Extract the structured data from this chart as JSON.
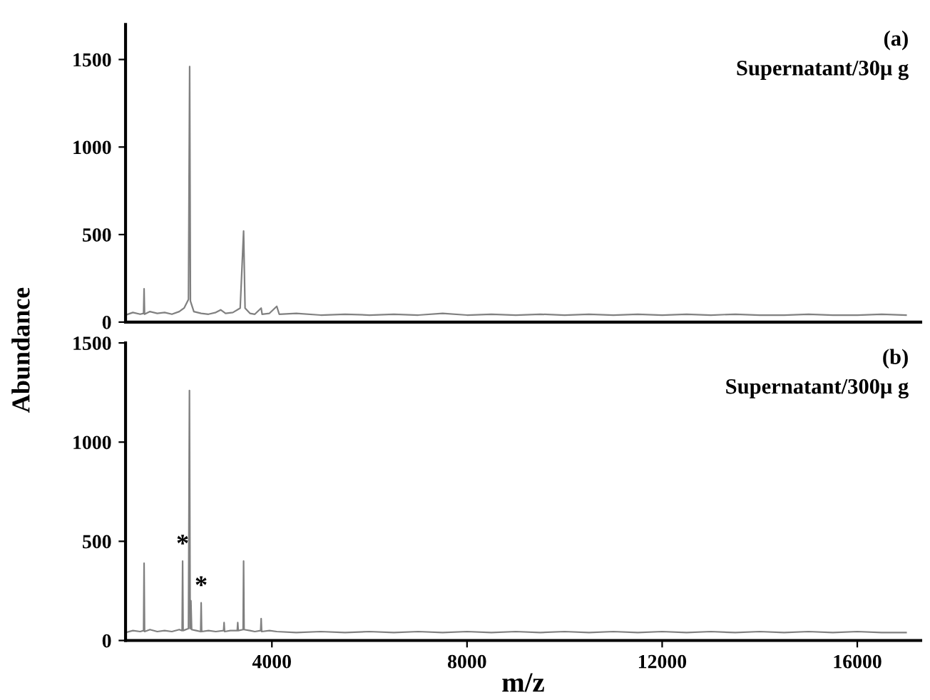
{
  "chart_data": [
    {
      "type": "line",
      "ylabel": "Abundance",
      "annotations": [
        "(a)",
        "Supernatant/30μ g"
      ],
      "xlim": [
        1000,
        17300
      ],
      "ylim": [
        0,
        1700
      ],
      "yticks": [
        0,
        500,
        1000,
        1500
      ],
      "tick_labels": "y",
      "grid": false,
      "legend": false,
      "series": [
        {
          "color": "#808080",
          "x": [
            1000,
            1150,
            1300,
            1370,
            1380,
            1390,
            1500,
            1650,
            1800,
            1950,
            2100,
            2200,
            2290,
            2314,
            2330,
            2400,
            2550,
            2700,
            2850,
            2950,
            3050,
            3200,
            3350,
            3420,
            3450,
            3550,
            3650,
            3780,
            3800,
            3950,
            4100,
            4150,
            4500,
            5000,
            5500,
            6000,
            6500,
            7000,
            7500,
            8000,
            8500,
            9000,
            9500,
            10000,
            10500,
            11000,
            11500,
            12000,
            12500,
            13000,
            13500,
            14000,
            14500,
            15000,
            15500,
            16000,
            16500,
            17000
          ],
          "values": [
            40,
            55,
            45,
            50,
            190,
            45,
            60,
            50,
            55,
            45,
            60,
            80,
            130,
            1460,
            120,
            60,
            50,
            45,
            55,
            70,
            50,
            55,
            80,
            520,
            80,
            50,
            45,
            80,
            45,
            50,
            90,
            45,
            50,
            40,
            45,
            40,
            45,
            40,
            50,
            40,
            45,
            40,
            45,
            40,
            45,
            40,
            45,
            40,
            45,
            40,
            45,
            40,
            40,
            45,
            40,
            40,
            45,
            40
          ]
        }
      ]
    },
    {
      "type": "line",
      "xlabel": "m/z",
      "annotations": [
        "(b)",
        "Supernatant/300μ g",
        {
          "text": "*",
          "x": 2170,
          "y": 400
        },
        {
          "text": "*",
          "x": 2550,
          "y": 190
        }
      ],
      "xlim": [
        1000,
        17300
      ],
      "xticks": [
        4000,
        8000,
        12000,
        16000
      ],
      "ylim": [
        0,
        1500
      ],
      "yticks": [
        0,
        500,
        1000,
        1500
      ],
      "grid": false,
      "legend": false,
      "series": [
        {
          "color": "#808080",
          "x": [
            1000,
            1150,
            1300,
            1370,
            1380,
            1390,
            1500,
            1650,
            1800,
            1950,
            2100,
            2160,
            2170,
            2180,
            2290,
            2310,
            2325,
            2340,
            2355,
            2450,
            2540,
            2550,
            2560,
            2700,
            2850,
            3010,
            3020,
            3030,
            3150,
            3290,
            3300,
            3310,
            3410,
            3420,
            3430,
            3550,
            3650,
            3770,
            3780,
            3790,
            3950,
            4100,
            4500,
            5000,
            5500,
            6000,
            6500,
            7000,
            7500,
            8000,
            8500,
            9000,
            9500,
            10000,
            10500,
            11000,
            11500,
            12000,
            12500,
            13000,
            13500,
            14000,
            14500,
            15000,
            15500,
            16000,
            16500,
            17000
          ],
          "values": [
            40,
            50,
            45,
            50,
            390,
            45,
            55,
            45,
            50,
            45,
            55,
            50,
            400,
            50,
            60,
            1260,
            60,
            200,
            55,
            50,
            45,
            190,
            45,
            50,
            45,
            50,
            90,
            45,
            50,
            50,
            90,
            50,
            55,
            400,
            55,
            50,
            45,
            50,
            110,
            45,
            50,
            45,
            40,
            45,
            40,
            45,
            40,
            45,
            40,
            45,
            40,
            45,
            40,
            45,
            40,
            45,
            40,
            45,
            40,
            45,
            40,
            45,
            40,
            45,
            40,
            45,
            40,
            40
          ]
        }
      ]
    }
  ]
}
